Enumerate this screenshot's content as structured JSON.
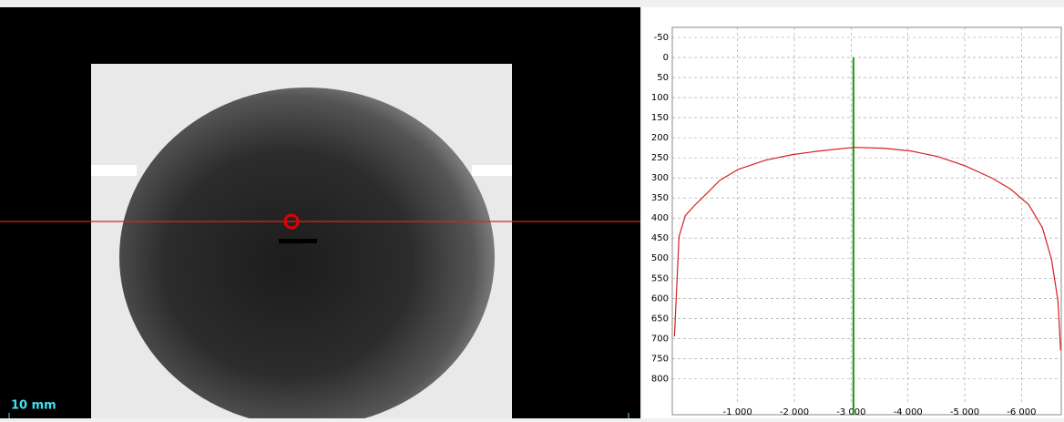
{
  "viewer": {
    "scale_label": "10 mm"
  },
  "chart_data": {
    "type": "line",
    "x": [
      112,
      32,
      -80,
      -240,
      -448,
      -688,
      -1008,
      -1488,
      -1968,
      -2448,
      -3040,
      -3568,
      -4048,
      -4528,
      -5008,
      -5488,
      -5808,
      -6128,
      -6368,
      -6528,
      -6640,
      -6688
    ],
    "values": [
      695,
      446,
      394,
      369,
      340,
      306,
      279,
      256,
      242,
      233,
      224,
      226,
      233,
      247,
      270,
      301,
      328,
      367,
      424,
      503,
      605,
      730
    ],
    "color": "#d42020",
    "cursor_x": -3040,
    "cursor_color": "#119911",
    "xlim": [
      150,
      -6700
    ],
    "ylim": [
      -75,
      890
    ],
    "y_inverted": true,
    "grid": true,
    "xticks": [
      {
        "value": -1000,
        "label": "-1 000"
      },
      {
        "value": -2000,
        "label": "-2 000"
      },
      {
        "value": -3000,
        "label": "-3 000"
      },
      {
        "value": -4000,
        "label": "-4 000"
      },
      {
        "value": -5000,
        "label": "-5 000"
      },
      {
        "value": -6000,
        "label": "-6 000"
      }
    ],
    "yticks": [
      -50,
      0,
      50,
      100,
      150,
      200,
      250,
      300,
      350,
      400,
      450,
      500,
      550,
      600,
      650,
      700,
      750,
      800
    ]
  }
}
